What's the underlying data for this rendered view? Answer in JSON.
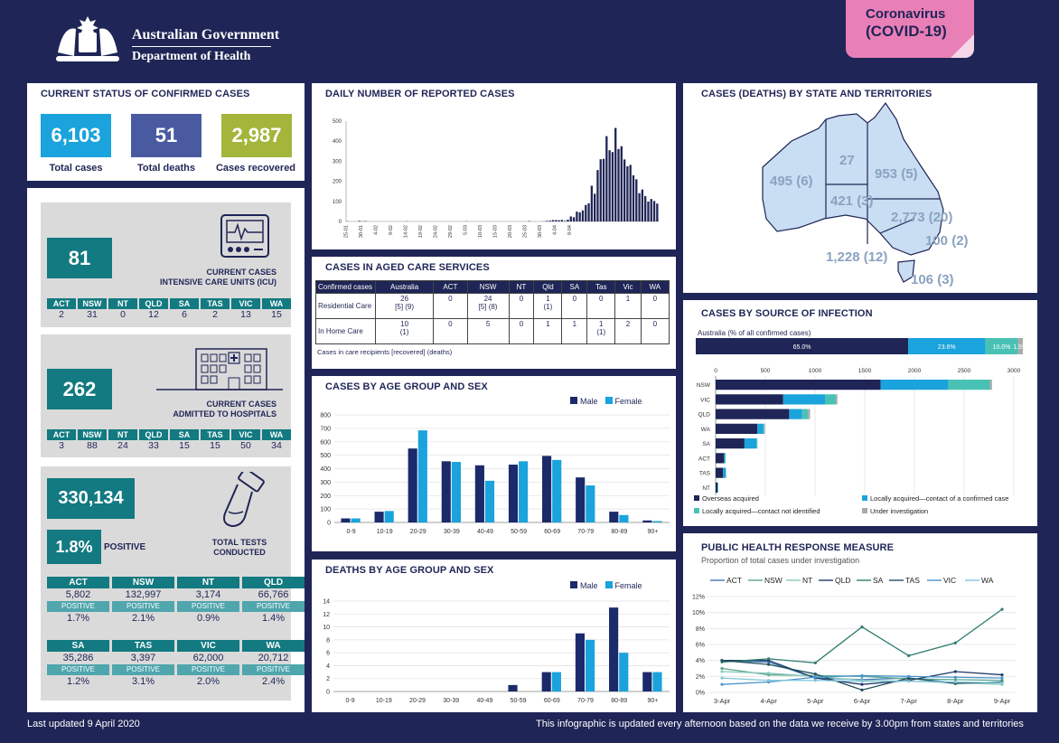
{
  "header": {
    "gov_line1": "Australian Government",
    "gov_line2": "Department of Health",
    "badge_line1": "Coronavirus",
    "badge_line2": "(COVID-19)"
  },
  "status": {
    "title": "CURRENT STATUS OF CONFIRMED CASES",
    "total_cases": "6,103",
    "total_cases_label": "Total cases",
    "total_deaths": "51",
    "total_deaths_label": "Total deaths",
    "recovered": "2,987",
    "recovered_label": "Cases recovered"
  },
  "icu": {
    "value": "81",
    "label_line1": "CURRENT CASES",
    "label_line2": "INTENSIVE CARE UNITS (ICU)",
    "states": [
      {
        "s": "ACT",
        "v": "2"
      },
      {
        "s": "NSW",
        "v": "31"
      },
      {
        "s": "NT",
        "v": "0"
      },
      {
        "s": "QLD",
        "v": "12"
      },
      {
        "s": "SA",
        "v": "6"
      },
      {
        "s": "TAS",
        "v": "2"
      },
      {
        "s": "VIC",
        "v": "13"
      },
      {
        "s": "WA",
        "v": "15"
      }
    ]
  },
  "hosp": {
    "value": "262",
    "label_line1": "CURRENT CASES",
    "label_line2": "ADMITTED TO HOSPITALS",
    "states": [
      {
        "s": "ACT",
        "v": "3"
      },
      {
        "s": "NSW",
        "v": "88"
      },
      {
        "s": "NT",
        "v": "24"
      },
      {
        "s": "QLD",
        "v": "33"
      },
      {
        "s": "SA",
        "v": "15"
      },
      {
        "s": "TAS",
        "v": "15"
      },
      {
        "s": "VIC",
        "v": "50"
      },
      {
        "s": "WA",
        "v": "34"
      }
    ]
  },
  "tests": {
    "value": "330,134",
    "positive_pct": "1.8%",
    "positive_label": "POSITIVE",
    "label_line1": "TOTAL TESTS",
    "label_line2": "CONDUCTED",
    "pos_word": "POSITIVE",
    "states": [
      {
        "s": "ACT",
        "v": "5,802",
        "p": "1.7%"
      },
      {
        "s": "NSW",
        "v": "132,997",
        "p": "2.1%"
      },
      {
        "s": "NT",
        "v": "3,174",
        "p": "0.9%"
      },
      {
        "s": "QLD",
        "v": "66,766",
        "p": "1.4%"
      },
      {
        "s": "SA",
        "v": "35,286",
        "p": "1.2%"
      },
      {
        "s": "TAS",
        "v": "3,397",
        "p": "3.1%"
      },
      {
        "s": "VIC",
        "v": "62,000",
        "p": "2.0%"
      },
      {
        "s": "WA",
        "v": "20,712",
        "p": "2.4%"
      }
    ]
  },
  "aged": {
    "title": "CASES IN AGED CARE SERVICES",
    "headers": [
      "Confirmed cases",
      "Australia",
      "ACT",
      "NSW",
      "NT",
      "Qld",
      "SA",
      "Tas",
      "Vic",
      "WA"
    ],
    "rows": [
      {
        "label": "Residential Care",
        "cells": [
          "26\n[5] (9)",
          "0",
          "24\n[5] (8)",
          "0",
          "1\n(1)",
          "0",
          "0",
          "1",
          "0"
        ]
      },
      {
        "label": "In Home Care",
        "cells": [
          "10\n(1)",
          "0",
          "5",
          "0",
          "1",
          "1",
          "1\n(1)",
          "2",
          "0"
        ]
      }
    ],
    "note": "Cases in care recipients [recovered] (deaths)"
  },
  "map": {
    "title": "CASES (DEATHS) BY STATE AND TERRITORIES",
    "wa": "495 (6)",
    "nt": "27",
    "qld": "953 (5)",
    "sa": "421 (3)",
    "nsw": "2,773 (20)",
    "act": "100 (2)",
    "vic": "1,228 (12)",
    "tas": "106 (3)"
  },
  "footer": {
    "updated": "Last updated 9 April 2020",
    "note": "This infographic is updated every afternoon based on the data we receive by 3.00pm from states and territories"
  },
  "colors": {
    "navy": "#1f2556",
    "male": "#1b2a6b",
    "female": "#1aa3dc",
    "teal": "#127a80",
    "aqua": "#49c2b5",
    "grey": "#aaaaaa",
    "pink": "#e97fb7"
  },
  "chart_data": [
    {
      "id": "daily",
      "type": "bar",
      "title": "DAILY NUMBER OF REPORTED CASES",
      "ylim": [
        0,
        500
      ],
      "yticks": [
        0,
        100,
        200,
        300,
        400,
        500
      ],
      "xtick_labels": [
        "25-01",
        "30-01",
        "4-02",
        "9-02",
        "14-02",
        "19-02",
        "24-02",
        "29-02",
        "5-03",
        "10-03",
        "15-03",
        "20-03",
        "25-03",
        "30-03",
        "4-04",
        "9-04"
      ],
      "values": [
        1,
        0,
        0,
        0,
        3,
        1,
        2,
        0,
        0,
        0,
        0,
        0,
        0,
        0,
        0,
        0,
        0,
        0,
        0,
        0,
        1,
        0,
        0,
        0,
        0,
        0,
        0,
        0,
        0,
        0,
        0,
        0,
        0,
        0,
        0,
        0,
        0,
        0,
        0,
        0,
        1,
        0,
        0,
        0,
        0,
        0,
        0,
        0,
        0,
        0,
        0,
        0,
        0,
        0,
        0,
        0,
        0,
        0,
        0,
        0,
        0,
        2,
        0,
        0,
        0,
        0,
        1,
        3,
        4,
        7,
        7,
        6,
        8,
        3,
        9,
        25,
        21,
        49,
        45,
        55,
        82,
        90,
        178,
        138,
        256,
        310,
        312,
        425,
        355,
        346,
        466,
        361,
        375,
        309,
        275,
        282,
        230,
        210,
        141,
        159,
        126,
        99,
        112,
        102,
        89
      ]
    },
    {
      "id": "source",
      "type": "bar",
      "title": "CASES BY SOURCE OF INFECTION",
      "subtitle": "Australia (% of all confirmed cases)",
      "overall": [
        {
          "name": "Overseas acquired",
          "pct": 65.0,
          "label": "65.0%"
        },
        {
          "name": "Locally acquired—contact of a confirmed case",
          "pct": 23.6,
          "label": "23.6%"
        },
        {
          "name": "Locally acquired—contact not identified",
          "pct": 10.0,
          "label": "10.0%"
        },
        {
          "name": "Under investigation",
          "pct": 1.5,
          "label": "1.5%"
        }
      ],
      "categories": [
        "NSW",
        "VIC",
        "QLD",
        "WA",
        "SA",
        "ACT",
        "TAS",
        "NT"
      ],
      "xlim": [
        0,
        3000
      ],
      "xticks": [
        0,
        500,
        1000,
        1500,
        2000,
        2500,
        3000
      ],
      "series": [
        {
          "name": "Overseas acquired",
          "values": [
            1660,
            680,
            740,
            420,
            290,
            85,
            75,
            18
          ]
        },
        {
          "name": "Locally acquired—contact of a confirmed case",
          "values": [
            680,
            420,
            130,
            60,
            120,
            12,
            25,
            5
          ]
        },
        {
          "name": "Locally acquired—contact not identified",
          "values": [
            420,
            110,
            60,
            10,
            10,
            3,
            4,
            3
          ]
        },
        {
          "name": "Under investigation",
          "values": [
            20,
            15,
            20,
            5,
            1,
            0,
            2,
            1
          ]
        }
      ]
    },
    {
      "id": "age",
      "type": "bar",
      "title": "CASES BY AGE GROUP AND SEX",
      "categories": [
        "0-9",
        "10-19",
        "20-29",
        "30-39",
        "40-49",
        "50-59",
        "60-69",
        "70-79",
        "80-89",
        "90+"
      ],
      "ylim": [
        0,
        800
      ],
      "yticks": [
        0,
        100,
        200,
        300,
        400,
        500,
        600,
        700,
        800
      ],
      "series": [
        {
          "name": "Male",
          "values": [
            30,
            80,
            550,
            455,
            425,
            430,
            495,
            335,
            80,
            15
          ]
        },
        {
          "name": "Female",
          "values": [
            30,
            85,
            685,
            450,
            310,
            455,
            465,
            275,
            55,
            10
          ]
        }
      ]
    },
    {
      "id": "deaths",
      "type": "bar",
      "title": "DEATHS BY AGE GROUP AND SEX",
      "categories": [
        "0-9",
        "10-19",
        "20-29",
        "30-39",
        "40-49",
        "50-59",
        "60-69",
        "70-79",
        "80-89",
        "90+"
      ],
      "ylim": [
        0,
        14
      ],
      "yticks": [
        0,
        2,
        4,
        6,
        8,
        10,
        12,
        14
      ],
      "series": [
        {
          "name": "Male",
          "values": [
            0,
            0,
            0,
            0,
            0,
            1,
            3,
            9,
            13,
            3
          ]
        },
        {
          "name": "Female",
          "values": [
            0,
            0,
            0,
            0,
            0,
            0,
            3,
            8,
            6,
            3
          ]
        }
      ]
    },
    {
      "id": "phr",
      "type": "line",
      "title": "PUBLIC HEALTH RESPONSE MEASURE",
      "subtitle": "Proportion of total cases under investigation",
      "x": [
        "3-Apr",
        "4-Apr",
        "5-Apr",
        "6-Apr",
        "7-Apr",
        "8-Apr",
        "9-Apr"
      ],
      "ylim": [
        0,
        12
      ],
      "yticks_labels": [
        "0%",
        "2%",
        "4%",
        "6%",
        "8%",
        "10%",
        "12%"
      ],
      "yticks": [
        0,
        2,
        4,
        6,
        8,
        10,
        12
      ],
      "series": [
        {
          "name": "ACT",
          "color": "#3a78b6",
          "values": [
            4,
            3.8,
            1.8,
            1.6,
            1.8,
            1.2,
            1.2
          ]
        },
        {
          "name": "NSW",
          "color": "#5aa68f",
          "values": [
            3,
            2.2,
            2.1,
            2.0,
            1.7,
            1.6,
            1.5
          ]
        },
        {
          "name": "NT",
          "color": "#86c9b9",
          "values": [
            2.6,
            2.4,
            2.0,
            1.5,
            1.4,
            1.2,
            1.0
          ]
        },
        {
          "name": "QLD",
          "color": "#1f3b6b",
          "values": [
            4,
            4,
            1.8,
            1.0,
            1.5,
            2.6,
            2.2
          ]
        },
        {
          "name": "SA",
          "color": "#2e7d6e",
          "values": [
            3.8,
            4.2,
            3.7,
            8.2,
            4.6,
            6.2,
            10.4
          ]
        },
        {
          "name": "TAS",
          "color": "#224f5a",
          "values": [
            4,
            3.5,
            2.3,
            0.3,
            1.8,
            1.1,
            1.3
          ]
        },
        {
          "name": "VIC",
          "color": "#4a94cc",
          "values": [
            1.0,
            1.3,
            1.9,
            2.1,
            2.0,
            1.9,
            1.8
          ]
        },
        {
          "name": "WA",
          "color": "#7fc6dc",
          "values": [
            1.8,
            1.5,
            1.5,
            1.4,
            1.4,
            1.3,
            1.2
          ]
        }
      ]
    }
  ]
}
